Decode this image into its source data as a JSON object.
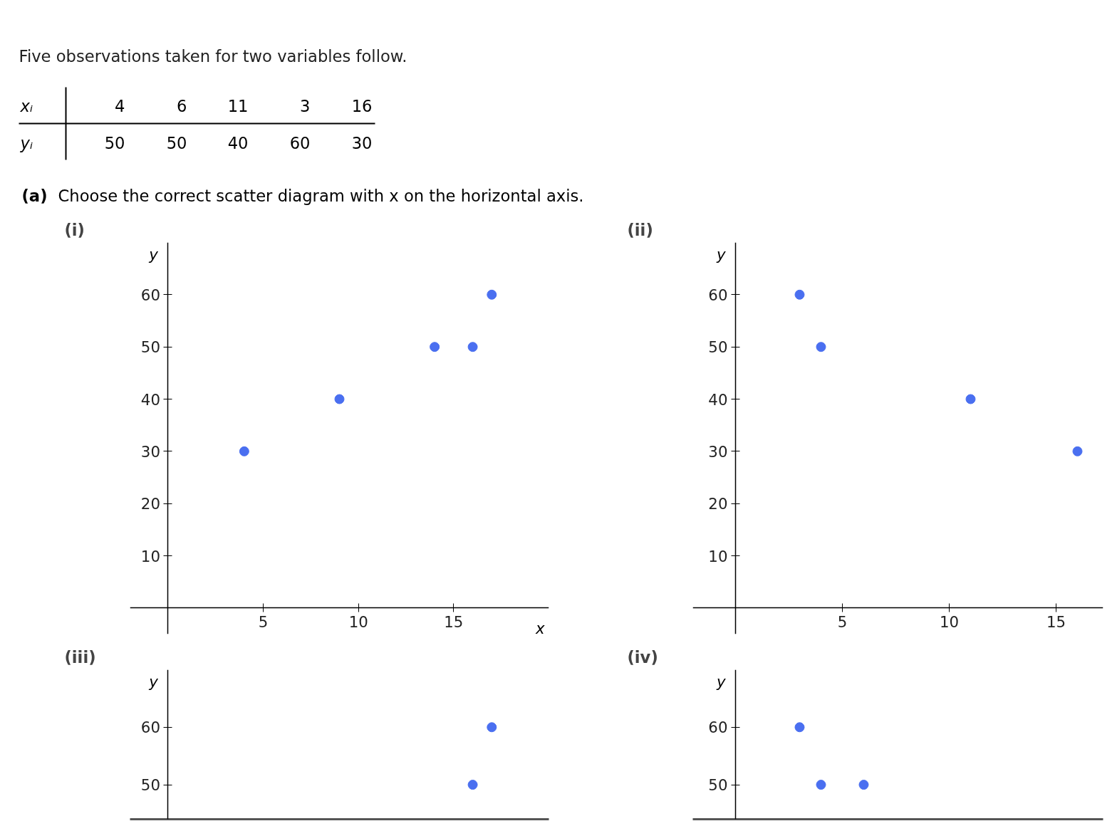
{
  "chart_data": [
    {
      "type": "other",
      "title": "Five observations taken for two variables follow.",
      "annotations": [
        "xᵢ",
        "4",
        "6",
        "11",
        "3",
        "16",
        "yᵢ",
        "50",
        "50",
        "40",
        "60",
        "30",
        "(a)",
        "Choose the correct scatter diagram with x on the horizontal axis."
      ]
    },
    {
      "type": "scatter",
      "title": "(i)",
      "xlabel": "x",
      "ylabel": "y",
      "x": [
        4,
        9,
        14,
        16,
        17
      ],
      "values": [
        30,
        40,
        50,
        50,
        60
      ],
      "color": "#4a6ff0",
      "marker": "circle",
      "xlim": [
        -2,
        20
      ],
      "ylim": [
        -5,
        70
      ],
      "xticks": [
        5,
        10,
        15
      ],
      "yticks": [
        10,
        20,
        30,
        40,
        50,
        60
      ]
    },
    {
      "type": "scatter",
      "title": "(ii)",
      "ylabel": "y",
      "x": [
        3,
        4,
        11,
        16
      ],
      "values": [
        60,
        50,
        40,
        30
      ],
      "color": "#4a6ff0",
      "marker": "circle",
      "xlim": [
        -2,
        17.2
      ],
      "ylim": [
        -5,
        70
      ],
      "xticks": [
        5,
        10,
        15
      ],
      "yticks": [
        10,
        20,
        30,
        40,
        50,
        60
      ]
    },
    {
      "type": "scatter",
      "title": "(iii)",
      "ylabel": "y",
      "x": [
        16,
        17
      ],
      "values": [
        50,
        60
      ],
      "color": "#4a6ff0",
      "marker": "circle",
      "xlim": [
        -2,
        20
      ],
      "ylim": [
        44,
        70
      ],
      "yticks": [
        50,
        60
      ],
      "tick_labels": "y"
    },
    {
      "type": "scatter",
      "title": "(iv)",
      "ylabel": "y",
      "x": [
        3,
        4,
        6
      ],
      "values": [
        60,
        50,
        50
      ],
      "color": "#4a6ff0",
      "marker": "circle",
      "xlim": [
        -2,
        17.2
      ],
      "ylim": [
        44,
        70
      ],
      "yticks": [
        50,
        60
      ],
      "tick_labels": "y"
    }
  ]
}
